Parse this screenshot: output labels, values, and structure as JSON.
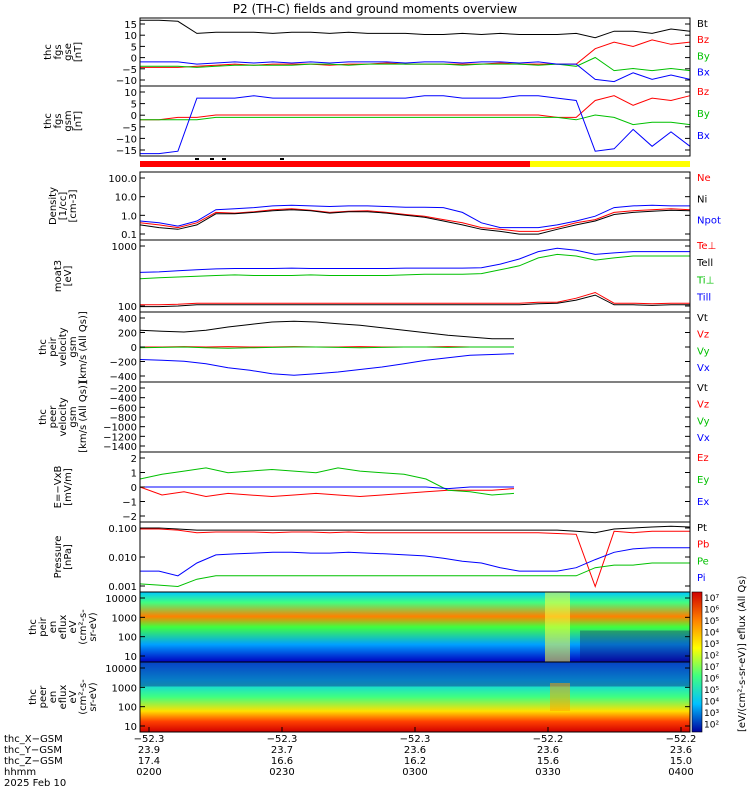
{
  "title": "P2 (TH-C) fields and ground moments overview",
  "colors": {
    "black": "#000000",
    "red": "#ff0000",
    "green": "#00c000",
    "blue": "#0000ff",
    "bar_red": "#ff0000",
    "bar_yellow": "#ffff00"
  },
  "chart_data": [
    {
      "type": "line",
      "panel": "fgs",
      "ylabel": [
        "thc",
        "fgs",
        "gse",
        "[nT]"
      ],
      "yticks": [
        "15",
        "10",
        "5",
        "0",
        "−5",
        "−10"
      ],
      "ylim": [
        -12,
        19
      ],
      "legend": [
        "Bt",
        "Bz",
        "By",
        "Bx"
      ],
      "series": [
        {
          "name": "Bt",
          "color": "black",
          "values": [
            18,
            18,
            17.5,
            12,
            12.5,
            12.5,
            12.5,
            12,
            12.5,
            12.5,
            12,
            12.5,
            12,
            12,
            12,
            11.5,
            11.5,
            12,
            11.5,
            12,
            11.5,
            11.5,
            11.5,
            12,
            10,
            13,
            13,
            12,
            14,
            13
          ]
        },
        {
          "name": "Bz",
          "color": "red",
          "values": [
            -3.5,
            -3.5,
            -3.5,
            -3,
            -2.5,
            -2,
            -2.5,
            -2,
            -2,
            -2,
            -2.5,
            -2,
            -2,
            -1.5,
            -2,
            -2,
            -2,
            -2,
            -2,
            -1.5,
            -2,
            -2,
            -2,
            -2,
            5,
            8,
            6,
            9,
            7,
            8
          ]
        },
        {
          "name": "By",
          "color": "green",
          "values": [
            -3,
            -3,
            -3,
            -3.5,
            -3,
            -2.5,
            -2.5,
            -2.5,
            -2.5,
            -2,
            -2,
            -2.5,
            -2,
            -2,
            -2,
            -2,
            -2,
            -2.5,
            -2,
            -2,
            -2,
            -2.5,
            -2,
            -3,
            1,
            -5,
            -4,
            -5,
            -4,
            -5
          ]
        },
        {
          "name": "Bx",
          "color": "blue",
          "values": [
            -1,
            -1,
            -1,
            -2,
            -1.5,
            -1,
            -1.5,
            -1,
            -1.5,
            -1,
            -1.5,
            -1,
            -1,
            -1,
            -1.5,
            -1,
            -1,
            -1.5,
            -1,
            -1,
            -1.5,
            -1,
            -2,
            -2,
            -9,
            -10,
            -6,
            -9,
            -7,
            -9
          ]
        }
      ]
    },
    {
      "type": "line",
      "panel": "fgs_gsm",
      "ylabel": [
        "thc",
        "fgs",
        "gsm",
        "[nT]"
      ],
      "yticks": [
        "10",
        "5",
        "0",
        "−5",
        "−10",
        "−15"
      ],
      "ylim": [
        -18,
        11
      ],
      "legend": [
        "Bz",
        "By",
        "Bx"
      ],
      "series": [
        {
          "name": "Bz",
          "color": "red",
          "values": [
            -3,
            -3,
            -2,
            -2,
            -1,
            -1,
            -1,
            -1,
            -1,
            -1,
            -1,
            -1,
            -1,
            -1,
            -1,
            -1,
            -1,
            -1,
            -1,
            -1,
            -1,
            -1,
            -2,
            -2,
            5,
            7,
            3,
            6,
            5,
            7
          ]
        },
        {
          "name": "By",
          "color": "green",
          "values": [
            -3,
            -3,
            -3,
            -3,
            -2,
            -2,
            -2,
            -2,
            -2,
            -2,
            -2,
            -2,
            -2,
            -2,
            -2,
            -2,
            -2,
            -2,
            -2,
            -2,
            -2,
            -2,
            -2,
            -3,
            -1,
            -2,
            -5,
            -4,
            -4,
            -5
          ]
        },
        {
          "name": "Bx",
          "color": "blue",
          "values": [
            -17,
            -17,
            -16,
            6,
            6,
            6,
            7,
            6,
            6,
            6,
            6,
            6,
            6,
            6,
            6,
            7,
            7,
            6,
            6,
            6,
            7,
            7,
            6,
            5,
            -16,
            -15,
            -7,
            -14,
            -8,
            -14
          ]
        }
      ]
    },
    {
      "type": "line",
      "panel": "density",
      "scale": "log",
      "ylabel": [
        "Density",
        "[1/cc]",
        "[cm-3]"
      ],
      "yticks": [
        "100.0",
        "10.0",
        "1.0",
        "0.1"
      ],
      "ylim": [
        0.08,
        110
      ],
      "legend": [
        "Ne",
        "Ni",
        "Npot"
      ],
      "series": [
        {
          "name": "Ne",
          "color": "red",
          "values": [
            0.5,
            0.4,
            0.3,
            0.5,
            1.5,
            1.4,
            1.6,
            2.0,
            2.2,
            1.9,
            1.5,
            1.7,
            1.8,
            1.5,
            1.2,
            1.0,
            0.7,
            0.5,
            0.3,
            0.25,
            0.2,
            0.2,
            0.3,
            0.5,
            0.7,
            1.5,
            1.8,
            2.0,
            2.2,
            2.0
          ]
        },
        {
          "name": "Ni",
          "color": "black",
          "values": [
            0.4,
            0.3,
            0.25,
            0.4,
            1.3,
            1.3,
            1.5,
            1.8,
            2.0,
            1.8,
            1.4,
            1.6,
            1.6,
            1.4,
            1.1,
            0.9,
            0.6,
            0.4,
            0.25,
            0.2,
            0.15,
            0.15,
            0.25,
            0.4,
            0.6,
            1.2,
            1.5,
            1.7,
            1.9,
            1.8
          ]
        },
        {
          "name": "Npot",
          "color": "blue",
          "values": [
            0.6,
            0.5,
            0.35,
            0.6,
            2.0,
            2.2,
            2.5,
            3.0,
            3.2,
            3.0,
            2.8,
            3.0,
            3.0,
            2.8,
            2.6,
            2.6,
            2.5,
            1.5,
            0.5,
            0.3,
            0.3,
            0.3,
            0.4,
            0.6,
            1.0,
            2.5,
            3.0,
            3.2,
            3.0,
            3.0
          ]
        }
      ]
    },
    {
      "type": "line",
      "panel": "temperature",
      "scale": "log",
      "ylabel": [
        "moat3",
        "[eV]"
      ],
      "yticks": [
        "1000",
        "100"
      ],
      "ylim": [
        15,
        2500
      ],
      "legend": [
        "Te⊥",
        "Tell",
        "Ti⊥",
        "Till"
      ],
      "series": [
        {
          "name": "Te⊥",
          "color": "red",
          "values": [
            25,
            25,
            26,
            28,
            28,
            28,
            28,
            28,
            28,
            28,
            28,
            28,
            28,
            28,
            28,
            28,
            28,
            28,
            28,
            28,
            28,
            30,
            30,
            40,
            60,
            28,
            28,
            27,
            28,
            28
          ]
        },
        {
          "name": "Tell",
          "color": "black",
          "values": [
            22,
            22,
            23,
            25,
            25,
            25,
            25,
            25,
            25,
            25,
            25,
            25,
            25,
            25,
            25,
            25,
            25,
            25,
            25,
            25,
            25,
            27,
            28,
            35,
            50,
            25,
            25,
            24,
            25,
            25
          ]
        },
        {
          "name": "Ti⊥",
          "color": "green",
          "values": [
            160,
            170,
            180,
            190,
            200,
            210,
            200,
            200,
            200,
            210,
            200,
            200,
            200,
            200,
            210,
            220,
            220,
            220,
            230,
            300,
            400,
            700,
            900,
            800,
            600,
            700,
            800,
            800,
            800,
            800
          ]
        },
        {
          "name": "Till",
          "color": "blue",
          "values": [
            250,
            260,
            280,
            300,
            320,
            330,
            330,
            330,
            340,
            330,
            330,
            330,
            330,
            330,
            340,
            340,
            340,
            340,
            350,
            450,
            650,
            1100,
            1400,
            1200,
            900,
            1000,
            1100,
            1100,
            1100,
            1100
          ]
        }
      ]
    },
    {
      "type": "line",
      "panel": "ion_velocity",
      "ylabel": [
        "thc",
        "peir",
        "velocity",
        "gsm",
        "[km/s (All Qs)]"
      ],
      "yticks": [
        "400",
        "200",
        "0",
        "−200",
        "−400"
      ],
      "ylim": [
        -420,
        420
      ],
      "legend": [
        "Vt",
        "Vz",
        "Vy",
        "Vx"
      ],
      "series": [
        {
          "name": "Vt",
          "color": "black",
          "values": [
            200,
            190,
            180,
            200,
            240,
            270,
            300,
            310,
            300,
            280,
            260,
            230,
            200,
            170,
            140,
            120,
            100,
            100
          ]
        },
        {
          "name": "Vz",
          "color": "red",
          "values": [
            0,
            0,
            5,
            0,
            5,
            0,
            0,
            5,
            0,
            0,
            5,
            0,
            0,
            0,
            5,
            0,
            0,
            0
          ]
        },
        {
          "name": "Vy",
          "color": "green",
          "values": [
            -10,
            -5,
            0,
            -10,
            -15,
            -10,
            -5,
            0,
            0,
            -5,
            -10,
            -5,
            0,
            0,
            -5,
            0,
            0,
            0
          ]
        },
        {
          "name": "Vx",
          "color": "blue",
          "values": [
            -150,
            -160,
            -170,
            -200,
            -250,
            -280,
            -320,
            -340,
            -320,
            -300,
            -270,
            -240,
            -200,
            -160,
            -130,
            -100,
            -90,
            -80
          ]
        }
      ]
    },
    {
      "type": "line",
      "panel": "electron_velocity",
      "ylabel": [
        "thc",
        "peer",
        "velocity",
        "gsm",
        "[km/s (All Qs)]"
      ],
      "yticks": [
        "−200",
        "−400",
        "−600",
        "−800",
        "−1000",
        "−1200",
        "−1400"
      ],
      "ylim": [
        -1450,
        -180
      ],
      "legend": [
        "Vt",
        "Vz",
        "Vy",
        "Vx"
      ],
      "series": []
    },
    {
      "type": "line",
      "panel": "efield",
      "ylabel": [
        "E=−VxB",
        "[mV/m]"
      ],
      "yticks": [
        "2",
        "1",
        "0",
        "−1",
        "−2"
      ],
      "ylim": [
        -2.2,
        2.2
      ],
      "legend": [
        "Ez",
        "Ey",
        "Ex"
      ],
      "series": [
        {
          "name": "Ez",
          "color": "red",
          "values": [
            0,
            -0.5,
            -0.3,
            -0.6,
            -0.4,
            -0.5,
            -0.6,
            -0.5,
            -0.4,
            -0.5,
            -0.6,
            -0.5,
            -0.4,
            -0.3,
            -0.2,
            -0.2,
            -0.2,
            -0.1
          ]
        },
        {
          "name": "Ey",
          "color": "green",
          "values": [
            0.5,
            0.8,
            1.0,
            1.2,
            0.9,
            1.0,
            1.1,
            1.0,
            0.9,
            1.2,
            1.0,
            0.9,
            0.8,
            0.5,
            -0.2,
            -0.3,
            -0.5,
            -0.4
          ]
        },
        {
          "name": "Ex",
          "color": "blue",
          "values": [
            0,
            0,
            0,
            0,
            0,
            0,
            0,
            0,
            0,
            0,
            0,
            0,
            0,
            0,
            -0.1,
            0,
            0,
            0
          ]
        }
      ]
    },
    {
      "type": "line",
      "panel": "pressure",
      "scale": "log",
      "ylabel": [
        "Pressure",
        "[nPa]"
      ],
      "yticks": [
        "0.100",
        "0.010",
        "0.001"
      ],
      "ylim": [
        0.0005,
        0.2
      ],
      "legend": [
        "Pt",
        "Pb",
        "Pe",
        "Pi"
      ],
      "series": [
        {
          "name": "Pt",
          "color": "black",
          "values": [
            0.12,
            0.12,
            0.11,
            0.1,
            0.1,
            0.1,
            0.1,
            0.1,
            0.1,
            0.1,
            0.1,
            0.1,
            0.1,
            0.1,
            0.1,
            0.1,
            0.1,
            0.1,
            0.1,
            0.1,
            0.1,
            0.1,
            0.1,
            0.09,
            0.08,
            0.11,
            0.12,
            0.13,
            0.14,
            0.13
          ]
        },
        {
          "name": "Pb",
          "color": "red",
          "values": [
            0.11,
            0.11,
            0.1,
            0.08,
            0.085,
            0.085,
            0.085,
            0.08,
            0.085,
            0.085,
            0.08,
            0.085,
            0.08,
            0.08,
            0.08,
            0.08,
            0.08,
            0.08,
            0.08,
            0.08,
            0.08,
            0.08,
            0.075,
            0.07,
            0.0008,
            0.09,
            0.08,
            0.09,
            0.09,
            0.09
          ]
        },
        {
          "name": "Pe",
          "color": "green",
          "values": [
            0.001,
            0.0009,
            0.0008,
            0.0015,
            0.002,
            0.002,
            0.002,
            0.002,
            0.002,
            0.002,
            0.002,
            0.002,
            0.002,
            0.002,
            0.002,
            0.002,
            0.002,
            0.002,
            0.002,
            0.002,
            0.002,
            0.002,
            0.002,
            0.002,
            0.004,
            0.005,
            0.005,
            0.006,
            0.006,
            0.006
          ]
        },
        {
          "name": "Pi",
          "color": "blue",
          "values": [
            0.003,
            0.003,
            0.002,
            0.006,
            0.012,
            0.013,
            0.014,
            0.015,
            0.015,
            0.014,
            0.014,
            0.015,
            0.014,
            0.013,
            0.012,
            0.011,
            0.009,
            0.007,
            0.006,
            0.004,
            0.003,
            0.003,
            0.003,
            0.004,
            0.008,
            0.015,
            0.02,
            0.022,
            0.022,
            0.022
          ]
        }
      ]
    },
    {
      "type": "heatmap",
      "panel": "ion_spectrogram",
      "ylabel": [
        "thc",
        "peir",
        "en",
        "eflux",
        "eV",
        "(cm²-s-",
        "sr-eV)"
      ],
      "yticks": [
        "10000",
        "1000",
        "100",
        "10"
      ],
      "ylim": [
        5,
        25000
      ]
    },
    {
      "type": "heatmap",
      "panel": "electron_spectrogram",
      "ylabel": [
        "thc",
        "peer",
        "en",
        "eflux",
        "eV",
        "(cm²-s-",
        "sr-eV)"
      ],
      "yticks": [
        "10000",
        "1000",
        "100",
        "10"
      ],
      "ylim": [
        5,
        25000
      ],
      "colorbar": {
        "label": "[eV/(cm²-s-sr-eV)]  eflux (All Qs)",
        "ticks": [
          "10⁷",
          "10⁶",
          "10⁵",
          "10⁴",
          "10³",
          "10²",
          "10⁷",
          "10⁶",
          "10⁵",
          "10⁴",
          "10³",
          "10²"
        ]
      }
    }
  ],
  "x_axis": {
    "tick_labels": [
      "0200",
      "0230",
      "0300",
      "0330",
      "0400"
    ],
    "row_labels": [
      "thc_X−GSM",
      "thc_Y−GSM",
      "thc_Z−GSM",
      "hhmm",
      "2025 Feb 10"
    ],
    "rows": [
      [
        "−52.3",
        "−52.3",
        "−52.3",
        "−52.2",
        "−52.2"
      ],
      [
        "23.9",
        "23.7",
        "23.6",
        "23.6",
        "23.6"
      ],
      [
        "17.4",
        "16.6",
        "16.2",
        "15.6",
        "15.0"
      ]
    ]
  }
}
